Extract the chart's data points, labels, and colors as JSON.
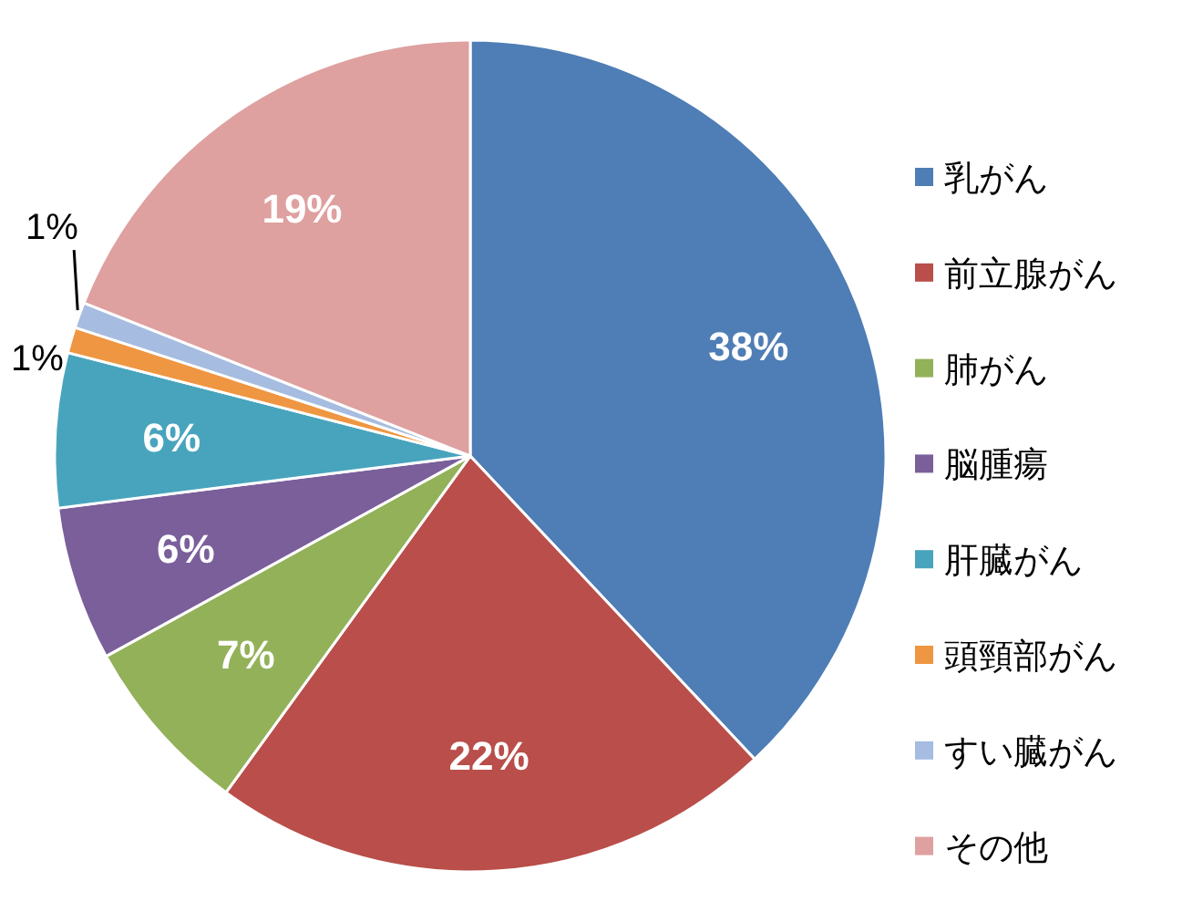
{
  "chart_data": {
    "type": "pie",
    "categories": [
      "乳がん",
      "前立腺がん",
      "肺がん",
      "脳腫瘍",
      "肝臓がん",
      "頭頸部がん",
      "すい臓がん",
      "その他"
    ],
    "values": [
      38,
      22,
      7,
      6,
      6,
      1,
      1,
      19
    ],
    "colors": [
      "#4f7db5",
      "#b94e4a",
      "#93b159",
      "#7a5f9a",
      "#48a4bd",
      "#ef9642",
      "#a6bce0",
      "#dfa0a0"
    ],
    "value_labels": [
      "38%",
      "22%",
      "7%",
      "6%",
      "6%",
      "1%",
      "1%",
      "19%"
    ],
    "legend": "right"
  }
}
